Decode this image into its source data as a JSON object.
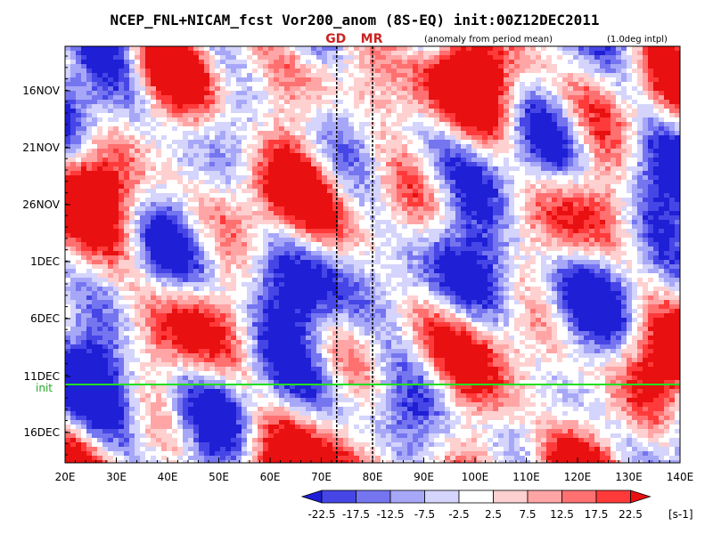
{
  "title": "NCEP_FNL+NICAM_fcst Vor200_anom (8S-EQ) init:00Z12DEC2011",
  "note_left": "(anomaly from period mean)",
  "note_right": "(1.0deg intpl)",
  "markers": [
    {
      "label": "GD",
      "lon": 73
    },
    {
      "label": "MR",
      "lon": 80
    }
  ],
  "init_label": "init",
  "colors": {
    "init_line": "#22dd22",
    "marker_text": "#cc2222"
  },
  "chart_data": {
    "type": "heatmap",
    "title": "NCEP_FNL+NICAM_fcst Vor200_anom (8S-EQ) init:00Z12DEC2011",
    "x_ticks": [
      "20E",
      "30E",
      "40E",
      "50E",
      "60E",
      "70E",
      "80E",
      "90E",
      "100E",
      "110E",
      "120E",
      "130E",
      "140E"
    ],
    "x_range_lon": [
      20,
      140
    ],
    "y_ticks": [
      "16NOV",
      "21NOV",
      "26NOV",
      "1DEC",
      "6DEC",
      "11DEC",
      "16DEC"
    ],
    "y_range_days_label": "mid-Nov 2011 to ~19 Dec 2011 (time increases downward)",
    "init_date": "12DEC2011",
    "colorbar": {
      "levels": [
        "-22.5",
        "-17.5",
        "-12.5",
        "-7.5",
        "-2.5",
        "2.5",
        "7.5",
        "12.5",
        "17.5",
        "22.5"
      ],
      "unit": "[s-1]",
      "colors": [
        "#1f1fd6",
        "#4646e6",
        "#7575f0",
        "#a7a7f8",
        "#d4d4fc",
        "#ffffff",
        "#ffd0d0",
        "#ffa5a5",
        "#ff7070",
        "#ff3a3a",
        "#e81010"
      ]
    }
  }
}
